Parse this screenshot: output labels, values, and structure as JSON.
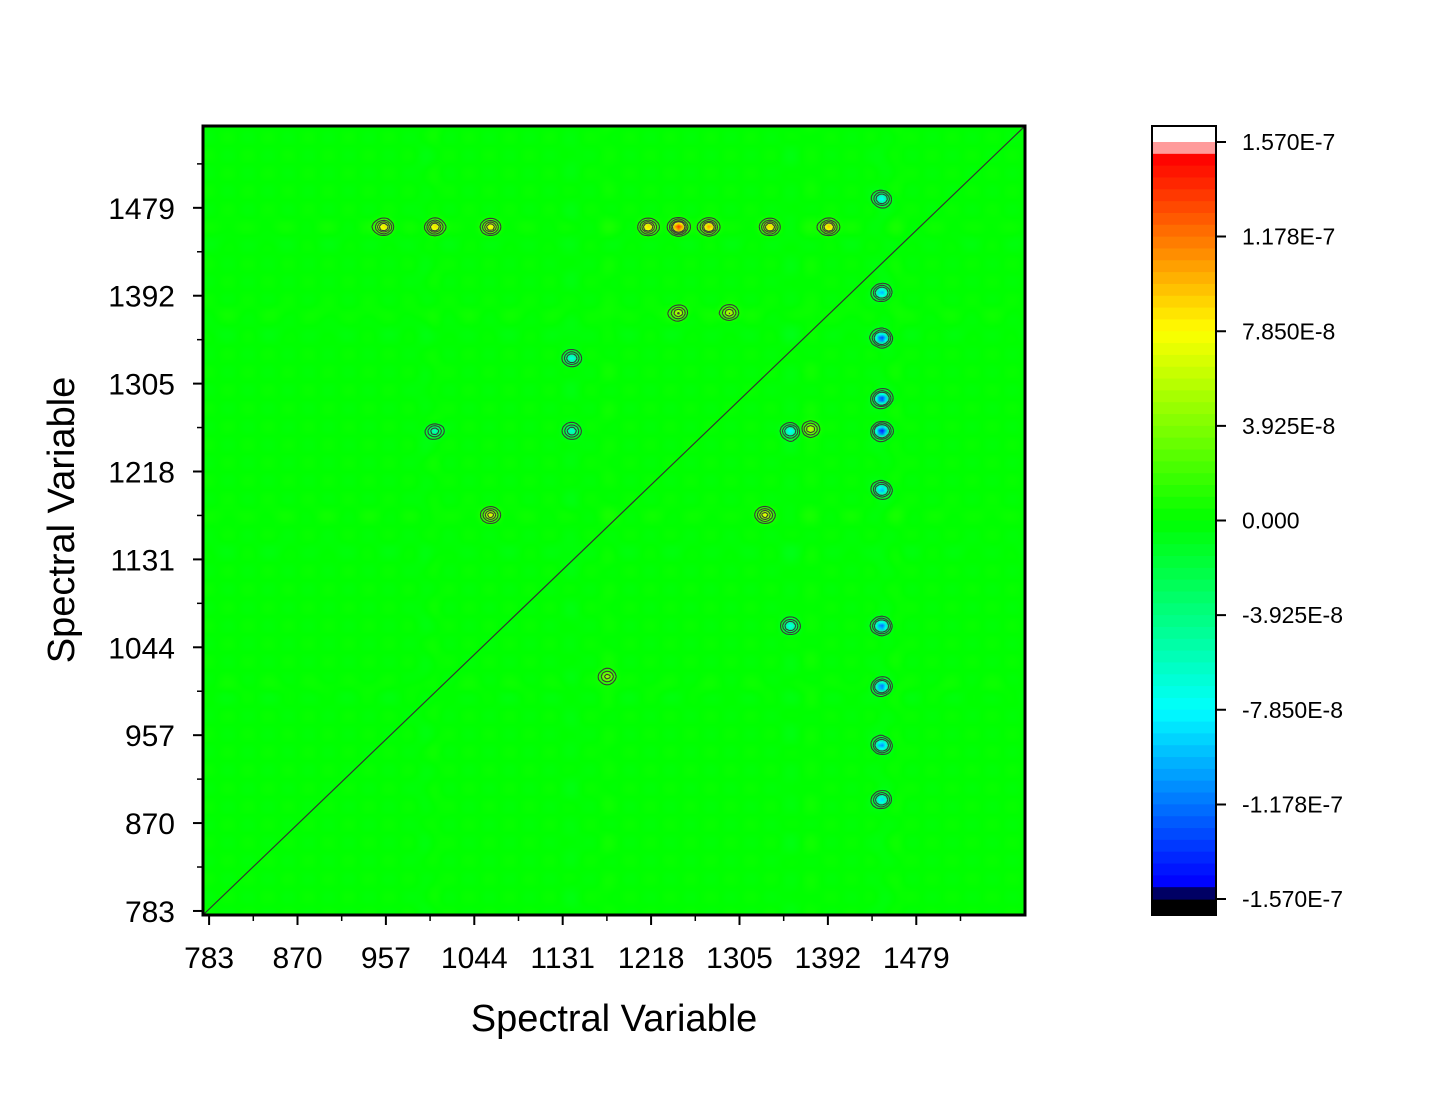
{
  "chart_data": {
    "type": "heatmap",
    "subtype": "2D correlation contour map",
    "title": "",
    "xlabel": "Spectral Variable",
    "ylabel": "Spectral Variable",
    "xlim": [
      777,
      1586
    ],
    "ylim": [
      779,
      1560
    ],
    "x_ticks": [
      783,
      870,
      957,
      1044,
      1131,
      1218,
      1305,
      1392,
      1479
    ],
    "y_ticks": [
      783,
      870,
      957,
      1044,
      1131,
      1218,
      1305,
      1392,
      1479
    ],
    "colorbar": {
      "min": -1.57e-07,
      "max": 1.57e-07,
      "tick_values": [
        1.57e-07,
        1.178e-07,
        7.85e-08,
        3.925e-08,
        0,
        -3.925e-08,
        -7.85e-08,
        -1.178e-07,
        -1.57e-07
      ],
      "tick_labels": [
        "1.570E-7",
        "1.178E-7",
        "7.850E-8",
        "3.925E-8",
        "0.000",
        "-3.925E-8",
        "-7.850E-8",
        "-1.178E-7",
        "-1.570E-7"
      ],
      "colors": [
        "#000000",
        "#0000ff",
        "#00ffff",
        "#00ff00",
        "#ffff00",
        "#ff0000",
        "#ffffff"
      ]
    },
    "bands": {
      "positive": [
        1460,
        1375,
        1175,
        1005
      ],
      "negative": [
        1445,
        1140,
        1355,
        995
      ]
    },
    "peaks": [
      {
        "x": 1245,
        "y": 1460,
        "value": 1.4e-07
      },
      {
        "x": 1275,
        "y": 1460,
        "value": 1.1e-07
      },
      {
        "x": 1215,
        "y": 1460,
        "value": 9e-08
      },
      {
        "x": 1335,
        "y": 1460,
        "value": 9e-08
      },
      {
        "x": 1393,
        "y": 1460,
        "value": 1e-07
      },
      {
        "x": 955,
        "y": 1460,
        "value": 9e-08
      },
      {
        "x": 1005,
        "y": 1460,
        "value": 9e-08
      },
      {
        "x": 1060,
        "y": 1460,
        "value": 8e-08
      },
      {
        "x": 1445,
        "y": 1350,
        "value": -1.3e-07
      },
      {
        "x": 1445,
        "y": 1290,
        "value": -1.35e-07
      },
      {
        "x": 1445,
        "y": 1258,
        "value": -1.45e-07
      },
      {
        "x": 1445,
        "y": 1200,
        "value": -1e-07
      },
      {
        "x": 1445,
        "y": 1065,
        "value": -1.2e-07
      },
      {
        "x": 1445,
        "y": 1005,
        "value": -1.2e-07
      },
      {
        "x": 1445,
        "y": 947,
        "value": -1.1e-07
      },
      {
        "x": 1445,
        "y": 893,
        "value": -9e-08
      },
      {
        "x": 1445,
        "y": 1395,
        "value": -1e-07
      },
      {
        "x": 1445,
        "y": 1488,
        "value": -8e-08
      },
      {
        "x": 1355,
        "y": 1258,
        "value": -8e-08
      },
      {
        "x": 1355,
        "y": 1065,
        "value": -7e-08
      },
      {
        "x": 1140,
        "y": 1258,
        "value": -6e-08
      },
      {
        "x": 1140,
        "y": 1330,
        "value": -7e-08
      },
      {
        "x": 1005,
        "y": 1258,
        "value": -6e-08
      },
      {
        "x": 1245,
        "y": 1375,
        "value": 6e-08
      },
      {
        "x": 1295,
        "y": 1375,
        "value": 6e-08
      },
      {
        "x": 1060,
        "y": 1175,
        "value": 7e-08
      },
      {
        "x": 1330,
        "y": 1175,
        "value": 7e-08
      },
      {
        "x": 1375,
        "y": 1260,
        "value": 6e-08
      },
      {
        "x": 1175,
        "y": 1015,
        "value": 5e-08
      }
    ]
  }
}
